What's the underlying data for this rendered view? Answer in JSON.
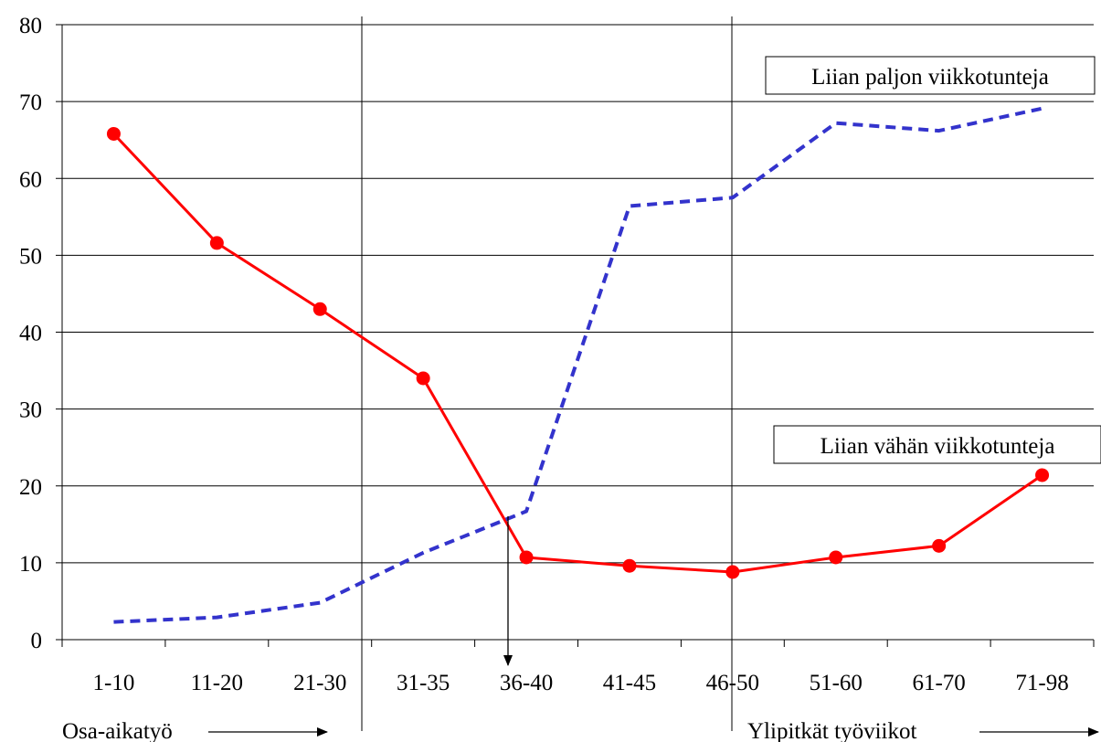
{
  "chart_data": {
    "type": "line",
    "categories": [
      "1-10",
      "11-20",
      "21-30",
      "31-35",
      "36-40",
      "41-45",
      "46-50",
      "51-60",
      "61-70",
      "71-98"
    ],
    "ylim": [
      0,
      80
    ],
    "yticks": [
      0,
      10,
      20,
      30,
      40,
      50,
      60,
      70,
      80
    ],
    "grid": "horizontal",
    "series": [
      {
        "name": "Liian vähän viikkotunteja",
        "color": "#ff0000",
        "style": "solid-markers",
        "values": [
          65.8,
          51.6,
          43.0,
          34.0,
          10.7,
          9.6,
          8.8,
          10.7,
          12.2,
          21.4
        ]
      },
      {
        "name": "Liian paljon viikkotunteja",
        "color": "#3333cc",
        "style": "dashed",
        "values": [
          2.3,
          2.9,
          4.8,
          11.3,
          16.7,
          56.4,
          57.5,
          67.2,
          66.2,
          69.1
        ]
      }
    ],
    "annotations": {
      "part_time": "Osa-aikatyö",
      "long_weeks": "Ylipitkät työviikot"
    }
  }
}
